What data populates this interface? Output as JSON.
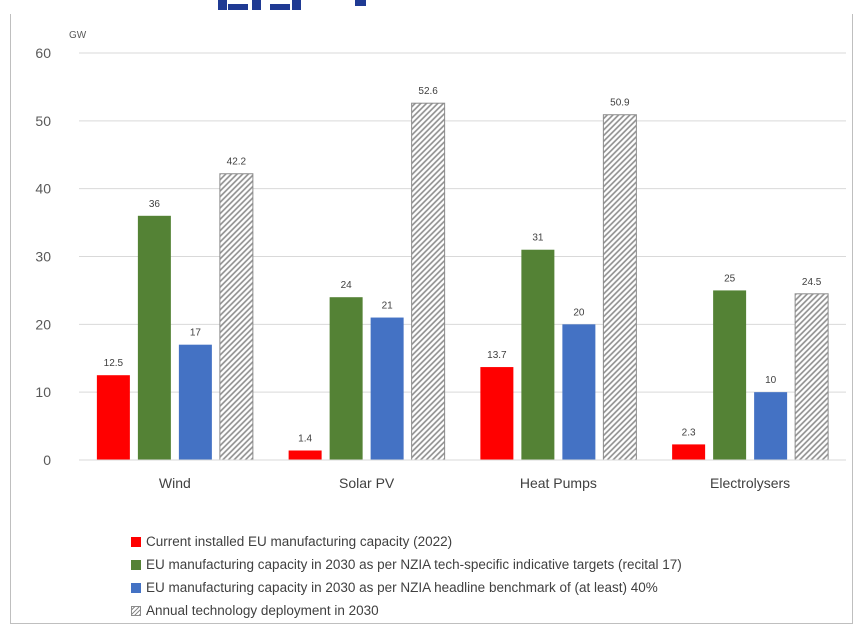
{
  "chart_data": {
    "type": "bar",
    "ylabel": "GW",
    "ylim": [
      0,
      60
    ],
    "yticks": [
      "0",
      "10",
      "20",
      "30",
      "40",
      "50",
      "60"
    ],
    "categories": [
      "Wind",
      "Solar PV",
      "Heat Pumps",
      "Electrolysers"
    ],
    "series": [
      {
        "name": "Current installed EU manufacturing capacity (2022)",
        "color": "#ff0000",
        "pattern": "solid",
        "values": [
          12.5,
          1.4,
          13.7,
          2.3
        ],
        "labels": [
          "12.5",
          "1.4",
          "13.7",
          "2.3"
        ]
      },
      {
        "name": "EU manufacturing capacity in 2030 as per NZIA tech-specific indicative targets (recital 17)",
        "color": "#548235",
        "pattern": "solid",
        "values": [
          36,
          24,
          31,
          25
        ],
        "labels": [
          "36",
          "24",
          "31",
          "25"
        ]
      },
      {
        "name": "EU manufacturing capacity in 2030 as per NZIA headline benchmark of (at least) 40%",
        "color": "#4472c4",
        "pattern": "solid",
        "values": [
          17,
          21,
          20,
          10
        ],
        "labels": [
          "17",
          "21",
          "20",
          "10"
        ]
      },
      {
        "name": "Annual technology deployment in 2030",
        "color": "#8c8c8c",
        "pattern": "hatch",
        "values": [
          42.2,
          52.6,
          50.9,
          24.5
        ],
        "labels": [
          "42.2",
          "52.6",
          "50.9",
          "24.5"
        ]
      }
    ],
    "grid": true,
    "legend_position": "bottom"
  },
  "header_fragment_color": "#1f3a93"
}
